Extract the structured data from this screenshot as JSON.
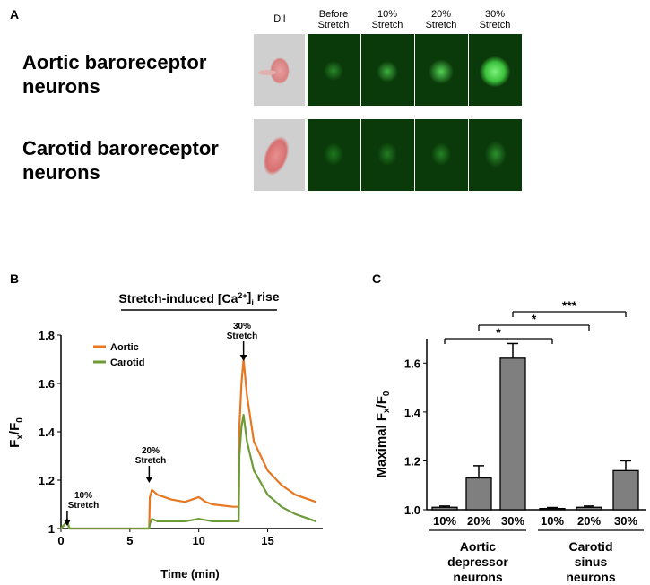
{
  "panel_a": {
    "letter": "A",
    "columns": [
      "DiI",
      "Before\nStretch",
      "10%\nStretch",
      "20%\nStretch",
      "30%\nStretch"
    ],
    "rows": [
      {
        "label_line1": "Aortic baroreceptor",
        "label_line2": "neurons",
        "brightness": [
          0.25,
          0.35,
          0.6,
          0.9
        ]
      },
      {
        "label_line1": "Carotid baroreceptor",
        "label_line2": "neurons",
        "brightness": [
          0.2,
          0.22,
          0.25,
          0.3
        ]
      }
    ]
  },
  "panel_b": {
    "letter": "B",
    "title": "Stretch-induced [Ca",
    "title_sup": "2+",
    "title_sub": "i",
    "title_end": " rise",
    "ylabel_main": "F",
    "ylabel_sub1": "x",
    "ylabel_mid": "/F",
    "ylabel_sub2": "0",
    "xlabel": "Time (min)",
    "legend": [
      {
        "name": "Aortic",
        "color": "#E87722"
      },
      {
        "name": "Carotid",
        "color": "#6E9B3A"
      }
    ],
    "annotations": [
      {
        "line1": "10%",
        "line2": "Stretch"
      },
      {
        "line1": "20%",
        "line2": "Stretch"
      },
      {
        "line1": "30%",
        "line2": "Stretch"
      }
    ]
  },
  "panel_c": {
    "letter": "C",
    "ylabel_main": "Maximal F",
    "ylabel_sub1": "x",
    "ylabel_mid": "/F",
    "ylabel_sub2": "0",
    "group_labels": [
      {
        "line1": "Aortic",
        "line2": "depressor",
        "line3": "neurons"
      },
      {
        "line1": "Carotid",
        "line2": "sinus",
        "line3": "neurons"
      }
    ],
    "significance": [
      "*",
      "*",
      "***"
    ]
  },
  "chart_data": [
    {
      "type": "line",
      "xlabel": "Time (min)",
      "ylabel": "Fx/F0",
      "xlim": [
        0,
        19
      ],
      "ylim": [
        1,
        1.8
      ],
      "xticks": [
        0,
        5,
        10,
        15
      ],
      "yticks": [
        1,
        1.2,
        1.4,
        1.6,
        1.8
      ],
      "legend": "top-left",
      "series": [
        {
          "name": "Aortic",
          "color": "#E87722",
          "x": [
            0,
            0.3,
            0.45,
            0.6,
            6.4,
            6.45,
            6.6,
            7.0,
            8,
            9,
            10,
            10.5,
            11,
            12.5,
            12.9,
            12.95,
            13.1,
            13.25,
            13.5,
            14,
            15,
            16,
            17,
            18,
            18.5
          ],
          "y": [
            1.0,
            1.02,
            1.03,
            1.0,
            1.0,
            1.13,
            1.16,
            1.14,
            1.12,
            1.11,
            1.13,
            1.11,
            1.1,
            1.09,
            1.09,
            1.42,
            1.6,
            1.7,
            1.55,
            1.36,
            1.24,
            1.18,
            1.14,
            1.12,
            1.11
          ]
        },
        {
          "name": "Carotid",
          "color": "#6E9B3A",
          "x": [
            0,
            0.3,
            0.45,
            0.6,
            6.4,
            6.45,
            6.6,
            7.0,
            8,
            9,
            10,
            11,
            12.5,
            12.9,
            12.95,
            13.1,
            13.25,
            13.5,
            14,
            15,
            16,
            17,
            18,
            18.5
          ],
          "y": [
            1.0,
            1.02,
            1.04,
            1.0,
            1.0,
            1.02,
            1.04,
            1.03,
            1.03,
            1.03,
            1.04,
            1.03,
            1.03,
            1.03,
            1.3,
            1.42,
            1.47,
            1.36,
            1.24,
            1.14,
            1.09,
            1.06,
            1.04,
            1.03
          ]
        }
      ],
      "annotations": [
        {
          "text": "10% Stretch",
          "x": 0.45
        },
        {
          "text": "20% Stretch",
          "x": 6.4
        },
        {
          "text": "30% Stretch",
          "x": 13.25
        }
      ]
    },
    {
      "type": "bar",
      "ylabel": "Maximal Fx/F0",
      "ylim": [
        1.0,
        1.7
      ],
      "yticks": [
        1.0,
        1.2,
        1.4,
        1.6
      ],
      "categories": [
        "10%",
        "20%",
        "30%",
        "10%",
        "20%",
        "30%"
      ],
      "groups": [
        "Aortic depressor neurons",
        "Carotid sinus neurons"
      ],
      "values": [
        1.01,
        1.13,
        1.62,
        1.005,
        1.01,
        1.16
      ],
      "errors": [
        0.005,
        0.05,
        0.06,
        0.004,
        0.005,
        0.04
      ],
      "color": "#7f7f7f",
      "significance": [
        {
          "from": 0,
          "to": 3,
          "label": "*"
        },
        {
          "from": 1,
          "to": 4,
          "label": "*"
        },
        {
          "from": 2,
          "to": 5,
          "label": "***"
        }
      ]
    }
  ]
}
